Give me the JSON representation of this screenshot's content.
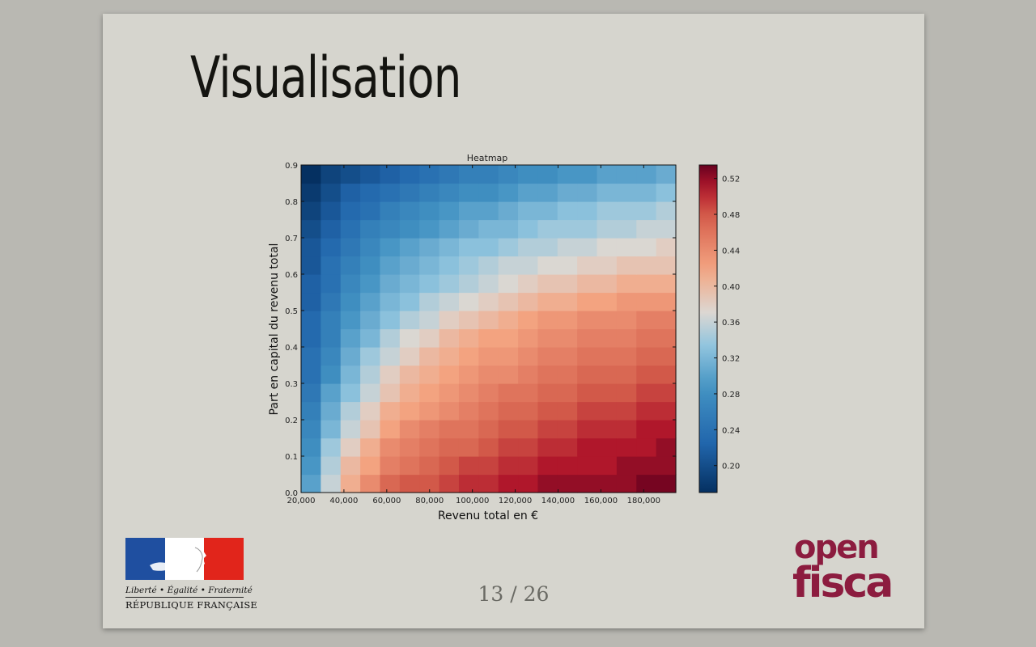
{
  "slide": {
    "title": "Visualisation",
    "page_number": "13 / 26"
  },
  "logos": {
    "republique": {
      "motto": "Liberté • Égalité • Fraternité",
      "name": "RÉPUBLIQUE FRANÇAISE",
      "colors": {
        "blue": "#1f4fa0",
        "white": "#ffffff",
        "red": "#e1251b"
      }
    },
    "openfisca": {
      "line1": "open",
      "line2": "fisca",
      "color": "#8c1c3f"
    }
  },
  "chart_data": {
    "type": "heatmap",
    "title": "Heatmap",
    "xlabel": "Revenu total en €",
    "ylabel": "Part en capital du revenu total",
    "x_range": [
      20000,
      195000
    ],
    "y_range": [
      0.0,
      0.9
    ],
    "x_bins": 19,
    "y_bins": 18,
    "x_ticks": [
      20000,
      40000,
      60000,
      80000,
      100000,
      120000,
      140000,
      160000,
      180000
    ],
    "x_tick_labels": [
      "20,000",
      "40,000",
      "60,000",
      "80,000",
      "100,000",
      "120,000",
      "140,000",
      "160,000",
      "180,000"
    ],
    "y_ticks": [
      0.0,
      0.1,
      0.2,
      0.3,
      0.4,
      0.5,
      0.6,
      0.7,
      0.8,
      0.9
    ],
    "y_tick_labels": [
      "0.0",
      "0.1",
      "0.2",
      "0.3",
      "0.4",
      "0.5",
      "0.6",
      "0.7",
      "0.8",
      "0.9"
    ],
    "colorbar": {
      "range": [
        0.17,
        0.535
      ],
      "ticks": [
        0.2,
        0.24,
        0.28,
        0.32,
        0.36,
        0.4,
        0.44,
        0.48,
        0.52
      ],
      "tick_labels": [
        "0.20",
        "0.24",
        "0.28",
        "0.32",
        "0.36",
        "0.40",
        "0.44",
        "0.48",
        "0.52"
      ],
      "colormap": "RdBu_r"
    },
    "values": [
      [
        0.3,
        0.36,
        0.41,
        0.44,
        0.47,
        0.48,
        0.48,
        0.49,
        0.5,
        0.5,
        0.51,
        0.51,
        0.52,
        0.52,
        0.52,
        0.52,
        0.52,
        0.53,
        0.53
      ],
      [
        0.29,
        0.35,
        0.4,
        0.42,
        0.45,
        0.46,
        0.47,
        0.48,
        0.49,
        0.49,
        0.5,
        0.5,
        0.51,
        0.51,
        0.51,
        0.51,
        0.52,
        0.52,
        0.52
      ],
      [
        0.28,
        0.34,
        0.38,
        0.41,
        0.44,
        0.45,
        0.46,
        0.47,
        0.47,
        0.48,
        0.49,
        0.49,
        0.5,
        0.5,
        0.51,
        0.51,
        0.51,
        0.51,
        0.52
      ],
      [
        0.27,
        0.32,
        0.36,
        0.39,
        0.42,
        0.44,
        0.45,
        0.46,
        0.46,
        0.47,
        0.48,
        0.48,
        0.49,
        0.49,
        0.5,
        0.5,
        0.5,
        0.51,
        0.51
      ],
      [
        0.26,
        0.31,
        0.35,
        0.38,
        0.41,
        0.42,
        0.43,
        0.44,
        0.45,
        0.46,
        0.47,
        0.47,
        0.48,
        0.48,
        0.49,
        0.49,
        0.49,
        0.5,
        0.5
      ],
      [
        0.25,
        0.3,
        0.33,
        0.36,
        0.39,
        0.41,
        0.42,
        0.43,
        0.44,
        0.45,
        0.46,
        0.46,
        0.47,
        0.47,
        0.48,
        0.48,
        0.48,
        0.49,
        0.49
      ],
      [
        0.24,
        0.28,
        0.32,
        0.35,
        0.38,
        0.4,
        0.41,
        0.42,
        0.43,
        0.44,
        0.44,
        0.45,
        0.46,
        0.46,
        0.47,
        0.47,
        0.47,
        0.48,
        0.48
      ],
      [
        0.24,
        0.27,
        0.31,
        0.34,
        0.36,
        0.38,
        0.4,
        0.41,
        0.42,
        0.43,
        0.43,
        0.44,
        0.45,
        0.45,
        0.46,
        0.46,
        0.46,
        0.47,
        0.47
      ],
      [
        0.23,
        0.26,
        0.3,
        0.32,
        0.35,
        0.37,
        0.38,
        0.4,
        0.41,
        0.42,
        0.42,
        0.43,
        0.44,
        0.44,
        0.45,
        0.45,
        0.45,
        0.46,
        0.46
      ],
      [
        0.23,
        0.26,
        0.29,
        0.31,
        0.33,
        0.35,
        0.36,
        0.38,
        0.39,
        0.4,
        0.41,
        0.42,
        0.43,
        0.43,
        0.44,
        0.44,
        0.44,
        0.45,
        0.45
      ],
      [
        0.22,
        0.25,
        0.28,
        0.3,
        0.32,
        0.33,
        0.35,
        0.36,
        0.37,
        0.38,
        0.39,
        0.4,
        0.41,
        0.41,
        0.42,
        0.42,
        0.43,
        0.43,
        0.43
      ],
      [
        0.22,
        0.24,
        0.27,
        0.29,
        0.31,
        0.32,
        0.33,
        0.34,
        0.35,
        0.36,
        0.37,
        0.38,
        0.39,
        0.39,
        0.4,
        0.4,
        0.41,
        0.41,
        0.41
      ],
      [
        0.21,
        0.24,
        0.26,
        0.28,
        0.3,
        0.31,
        0.32,
        0.33,
        0.34,
        0.35,
        0.36,
        0.36,
        0.37,
        0.37,
        0.38,
        0.38,
        0.39,
        0.39,
        0.39
      ],
      [
        0.21,
        0.23,
        0.25,
        0.27,
        0.29,
        0.3,
        0.31,
        0.32,
        0.33,
        0.33,
        0.34,
        0.35,
        0.35,
        0.36,
        0.36,
        0.37,
        0.37,
        0.37,
        0.38
      ],
      [
        0.2,
        0.22,
        0.24,
        0.26,
        0.27,
        0.28,
        0.29,
        0.3,
        0.31,
        0.32,
        0.32,
        0.33,
        0.34,
        0.34,
        0.34,
        0.35,
        0.35,
        0.36,
        0.36
      ],
      [
        0.19,
        0.21,
        0.23,
        0.24,
        0.26,
        0.27,
        0.28,
        0.29,
        0.3,
        0.3,
        0.31,
        0.32,
        0.32,
        0.33,
        0.33,
        0.34,
        0.34,
        0.34,
        0.35
      ],
      [
        0.18,
        0.2,
        0.22,
        0.23,
        0.24,
        0.25,
        0.26,
        0.27,
        0.28,
        0.28,
        0.29,
        0.3,
        0.3,
        0.31,
        0.31,
        0.32,
        0.32,
        0.32,
        0.33
      ],
      [
        0.17,
        0.19,
        0.2,
        0.21,
        0.22,
        0.23,
        0.24,
        0.25,
        0.26,
        0.26,
        0.27,
        0.28,
        0.28,
        0.29,
        0.29,
        0.3,
        0.3,
        0.3,
        0.31
      ]
    ]
  }
}
